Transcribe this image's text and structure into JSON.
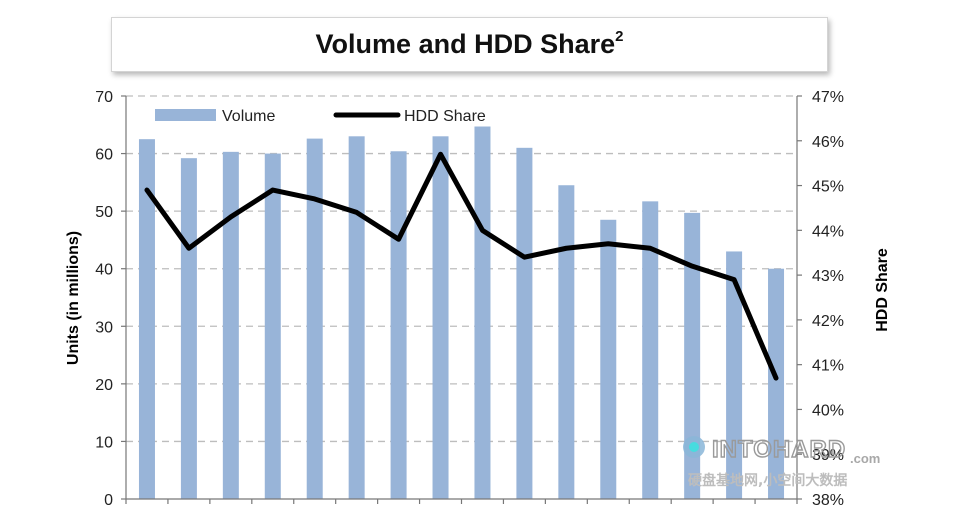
{
  "chart_data": {
    "type": "bar",
    "title": "Volume and HDD Share",
    "title_superscript": "2",
    "ylabel_left": "Units (in millions)",
    "ylabel_right": "HDD Share",
    "ylim_left": [
      0,
      70
    ],
    "ylim_right": [
      38,
      47
    ],
    "yticks_left": [
      "0",
      "10",
      "20",
      "30",
      "40",
      "50",
      "60",
      "70"
    ],
    "yticks_right": [
      "38%",
      "39%",
      "40%",
      "41%",
      "42%",
      "43%",
      "44%",
      "45%",
      "46%",
      "47%"
    ],
    "grid": "horizontal dashed",
    "legend": "top-left",
    "colors": {
      "bar": "#98b4d8",
      "line": "#000000",
      "grid": "#bdbdbd"
    },
    "series": [
      {
        "name": "Volume",
        "kind": "bar",
        "axis": "left",
        "values": [
          62.5,
          59.2,
          60.3,
          60.0,
          62.6,
          63.0,
          60.4,
          63.0,
          64.7,
          61.0,
          54.5,
          48.5,
          51.7,
          49.7,
          43.0,
          40.0
        ]
      },
      {
        "name": "HDD Share",
        "kind": "line",
        "axis": "right",
        "values": [
          44.9,
          43.6,
          44.3,
          44.9,
          44.7,
          44.4,
          43.8,
          45.7,
          44.0,
          43.4,
          43.6,
          43.7,
          43.6,
          43.2,
          42.9,
          40.7
        ]
      }
    ]
  },
  "watermark": {
    "brand": "INTOHARD",
    "domain": ".com",
    "tagline": "硬盘基地网,小空间大数据"
  }
}
